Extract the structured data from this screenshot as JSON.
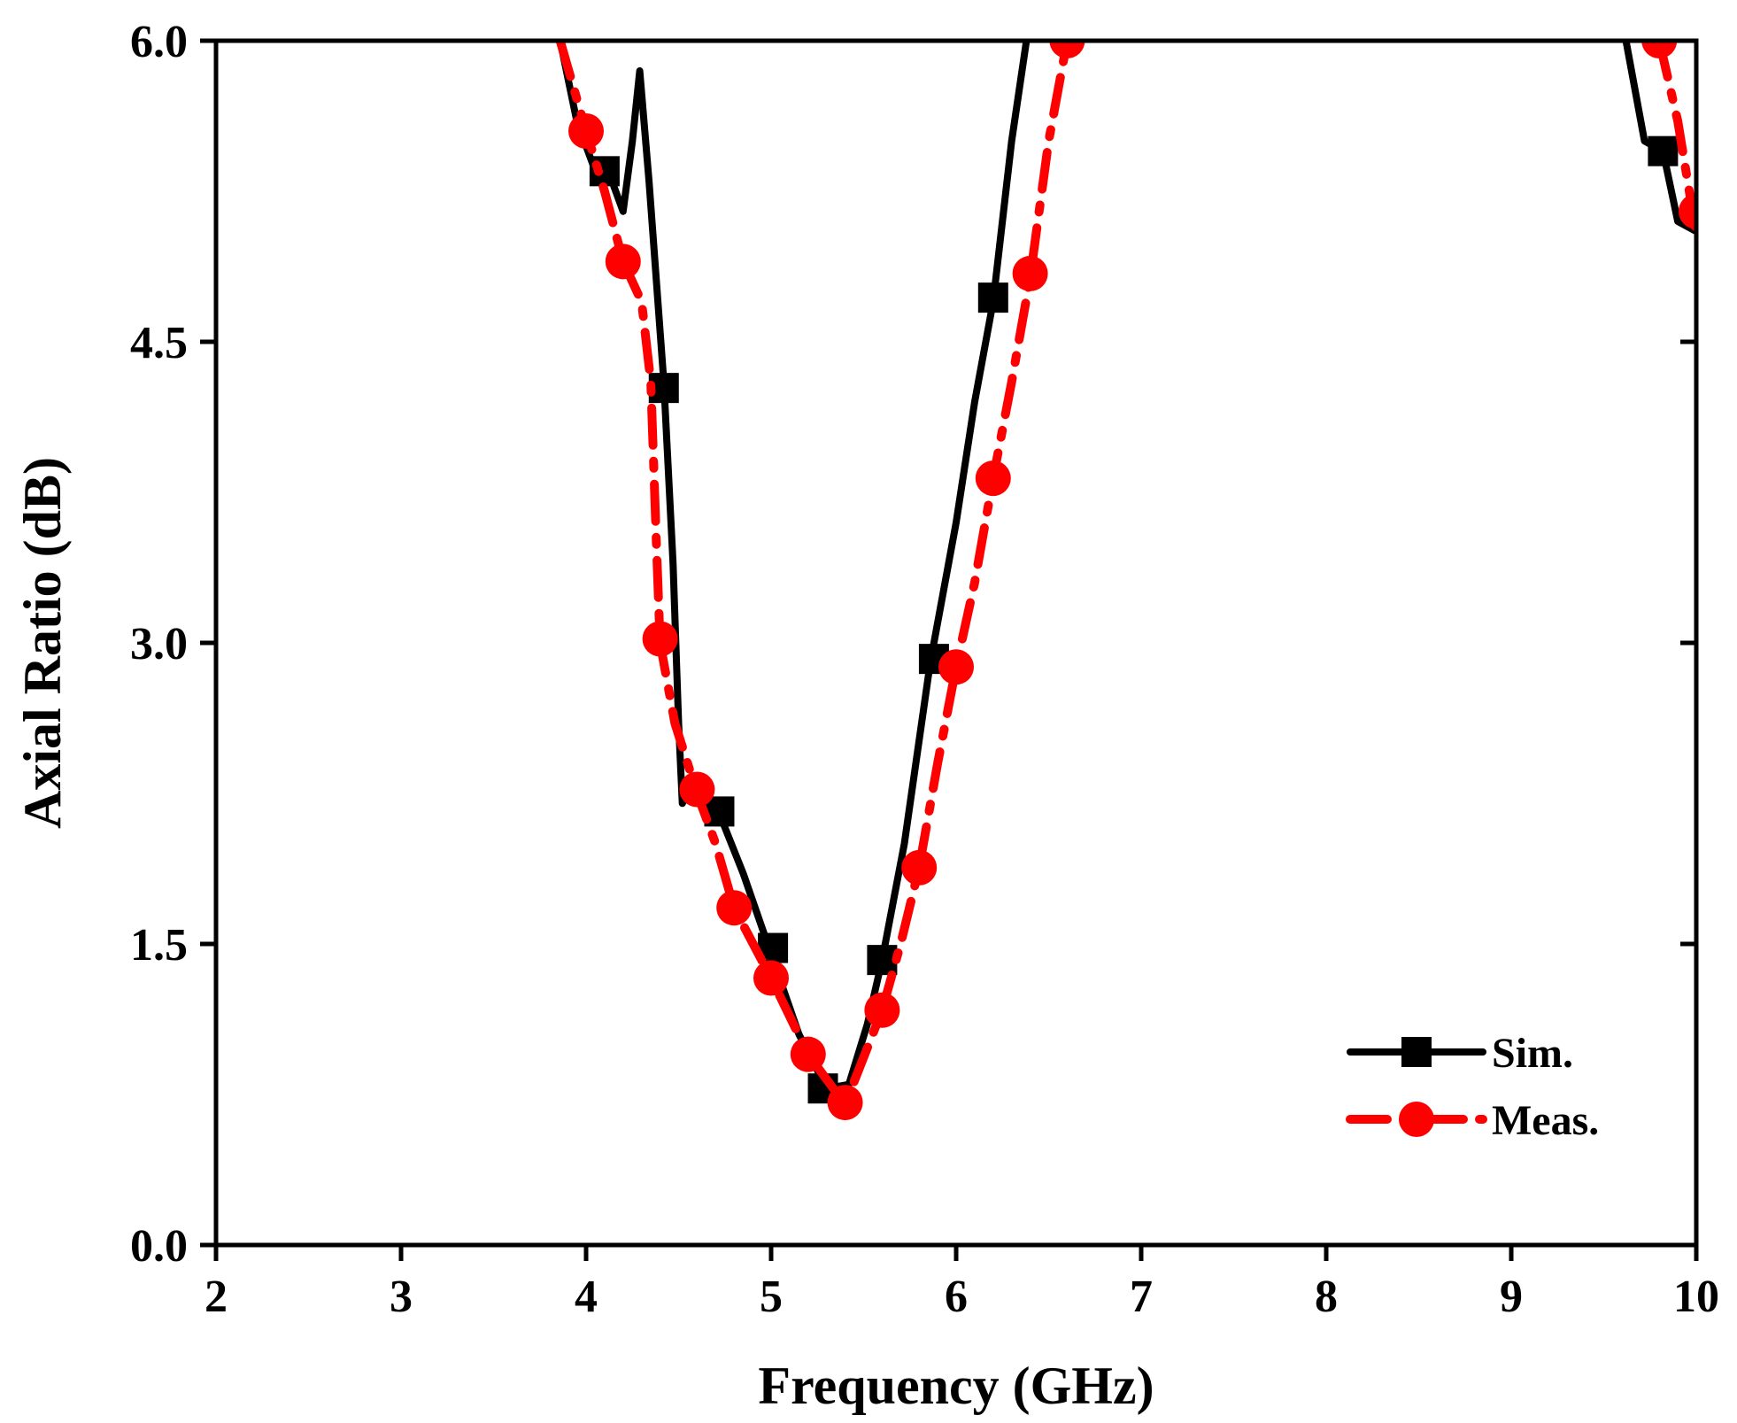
{
  "chart_data": {
    "type": "line",
    "title": "",
    "xlabel": "Frequency (GHz)",
    "ylabel": "Axial Ratio (dB)",
    "xlim": [
      2,
      10
    ],
    "ylim": [
      0,
      6
    ],
    "xticks": [
      2,
      3,
      4,
      5,
      6,
      7,
      8,
      9,
      10
    ],
    "xtick_labels": [
      "2",
      "3",
      "4",
      "5",
      "6",
      "7",
      "8",
      "9",
      "10"
    ],
    "yticks": [
      0,
      1.5,
      3,
      4.5,
      6
    ],
    "ytick_labels": [
      "0.0",
      "1.5",
      "3.0",
      "4.5",
      "6.0"
    ],
    "grid": false,
    "legend_position": "bottom-right",
    "series": [
      {
        "name": "Sim.",
        "color": "#000000",
        "marker": "square",
        "line_style": "solid",
        "line": [
          [
            3.86,
            6.0
          ],
          [
            3.95,
            5.6
          ],
          [
            4.05,
            5.35
          ],
          [
            4.12,
            5.35
          ],
          [
            4.2,
            5.15
          ],
          [
            4.25,
            5.5
          ],
          [
            4.29,
            5.85
          ],
          [
            4.34,
            5.3
          ],
          [
            4.42,
            4.3
          ],
          [
            4.47,
            3.4
          ],
          [
            4.5,
            2.6
          ],
          [
            4.52,
            2.2
          ],
          [
            4.58,
            2.3
          ],
          [
            4.62,
            2.25
          ],
          [
            4.72,
            2.15
          ],
          [
            4.85,
            1.85
          ],
          [
            5.0,
            1.45
          ],
          [
            5.15,
            1.05
          ],
          [
            5.3,
            0.78
          ],
          [
            5.42,
            0.8
          ],
          [
            5.52,
            1.1
          ],
          [
            5.6,
            1.42
          ],
          [
            5.72,
            2.0
          ],
          [
            5.86,
            2.9
          ],
          [
            6.0,
            3.6
          ],
          [
            6.1,
            4.2
          ],
          [
            6.2,
            4.7
          ],
          [
            6.3,
            5.5
          ],
          [
            6.38,
            6.0
          ]
        ],
        "line2": [
          [
            9.62,
            6.0
          ],
          [
            9.72,
            5.5
          ],
          [
            9.82,
            5.45
          ],
          [
            9.9,
            5.1
          ],
          [
            10.0,
            5.05
          ]
        ],
        "markers": [
          [
            4.1,
            5.35
          ],
          [
            4.42,
            4.27
          ],
          [
            4.72,
            2.16
          ],
          [
            5.01,
            1.48
          ],
          [
            5.28,
            0.78
          ],
          [
            5.6,
            1.42
          ],
          [
            5.88,
            2.92
          ],
          [
            6.2,
            4.72
          ],
          [
            9.82,
            5.45
          ]
        ]
      },
      {
        "name": "Meas.",
        "color": "#ff0000",
        "marker": "circle",
        "line_style": "dash-dot",
        "line": [
          [
            3.86,
            6.0
          ],
          [
            4.0,
            5.55
          ],
          [
            4.1,
            5.25
          ],
          [
            4.2,
            4.9
          ],
          [
            4.3,
            4.7
          ],
          [
            4.35,
            4.3
          ],
          [
            4.38,
            3.5
          ],
          [
            4.4,
            3.0
          ],
          [
            4.48,
            2.6
          ],
          [
            4.6,
            2.25
          ],
          [
            4.7,
            2.0
          ],
          [
            4.8,
            1.68
          ],
          [
            5.0,
            1.33
          ],
          [
            5.2,
            0.95
          ],
          [
            5.4,
            0.7
          ],
          [
            5.6,
            1.17
          ],
          [
            5.7,
            1.5
          ],
          [
            5.8,
            1.88
          ],
          [
            5.9,
            2.4
          ],
          [
            6.0,
            2.88
          ],
          [
            6.1,
            3.3
          ],
          [
            6.2,
            3.82
          ],
          [
            6.3,
            4.3
          ],
          [
            6.4,
            4.82
          ],
          [
            6.5,
            5.5
          ],
          [
            6.6,
            6.0
          ]
        ],
        "line2": [
          [
            9.8,
            6.0
          ],
          [
            9.9,
            5.6
          ],
          [
            9.98,
            5.15
          ],
          [
            10.0,
            5.05
          ]
        ],
        "markers": [
          [
            4.0,
            5.55
          ],
          [
            4.2,
            4.9
          ],
          [
            4.4,
            3.02
          ],
          [
            4.6,
            2.27
          ],
          [
            4.8,
            1.68
          ],
          [
            5.0,
            1.33
          ],
          [
            5.2,
            0.95
          ],
          [
            5.4,
            0.71
          ],
          [
            5.6,
            1.17
          ],
          [
            5.8,
            1.88
          ],
          [
            6.0,
            2.88
          ],
          [
            6.2,
            3.82
          ],
          [
            6.4,
            4.84
          ],
          [
            6.6,
            6.0
          ],
          [
            9.8,
            6.0
          ],
          [
            10.0,
            5.15
          ]
        ]
      }
    ]
  }
}
